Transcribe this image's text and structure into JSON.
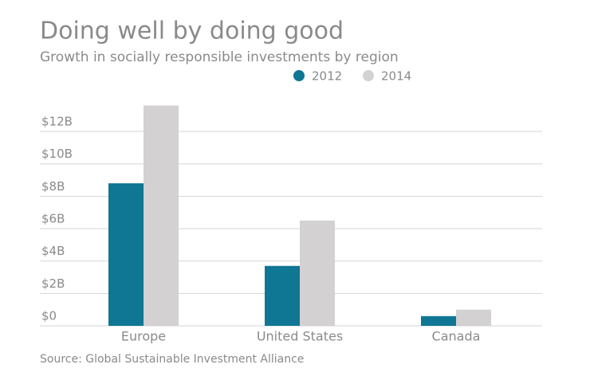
{
  "chart_data": {
    "type": "bar",
    "title": "Doing well by doing good",
    "subtitle": "Growth in socially responsible investments by region",
    "source": "Source: Global Sustainable Investment Alliance",
    "categories": [
      "Europe",
      "United States",
      "Canada"
    ],
    "series": [
      {
        "name": "2012",
        "color": "#0f7694",
        "values": [
          8.8,
          3.7,
          0.6
        ]
      },
      {
        "name": "2014",
        "color": "#d3d1d2",
        "values": [
          13.6,
          6.5,
          1.0
        ]
      }
    ],
    "ylim": [
      0,
      14
    ],
    "yticks": [
      {
        "value": 0,
        "label": "$0"
      },
      {
        "value": 2,
        "label": "$2B"
      },
      {
        "value": 4,
        "label": "$4B"
      },
      {
        "value": 6,
        "label": "$6B"
      },
      {
        "value": 8,
        "label": "$8B"
      },
      {
        "value": 10,
        "label": "$10B"
      },
      {
        "value": 12,
        "label": "$12B"
      }
    ],
    "grid": true
  }
}
